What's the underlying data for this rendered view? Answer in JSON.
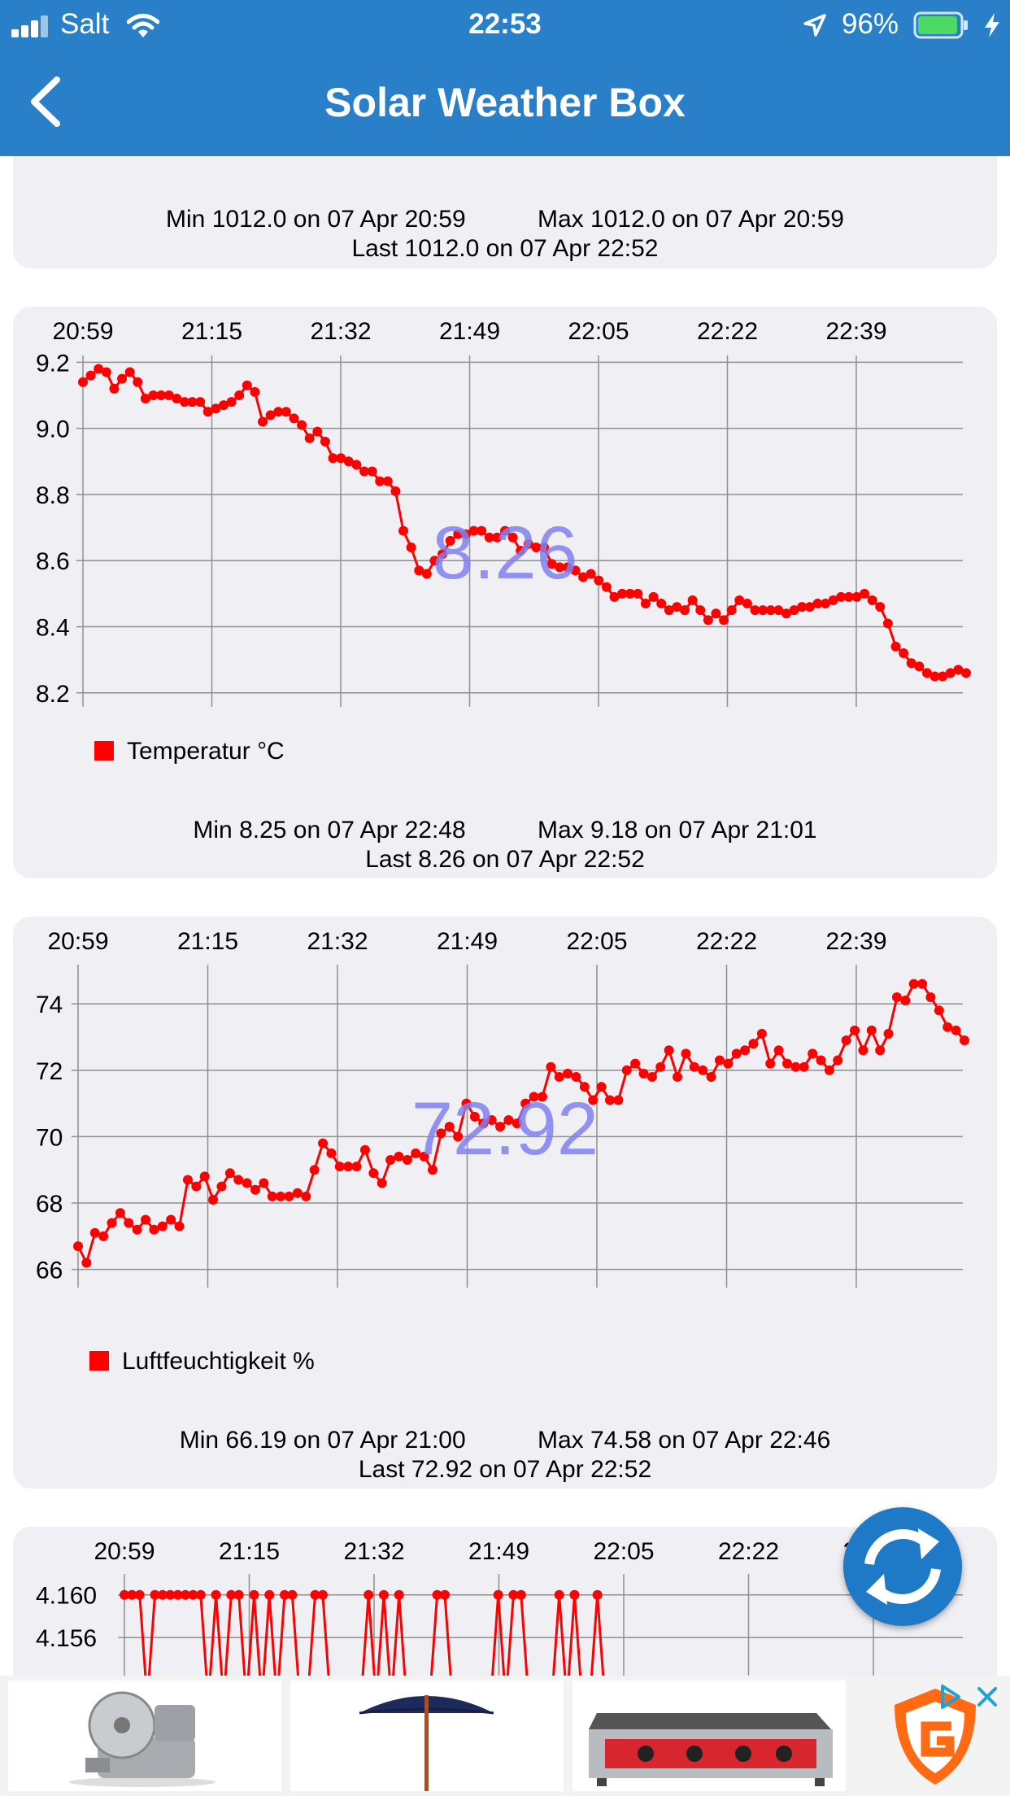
{
  "status_bar": {
    "carrier": "Salt",
    "time": "22:53",
    "battery_percent": "96%",
    "icons": [
      "signal-icon",
      "wifi-icon",
      "location-arrow-icon",
      "battery-icon",
      "charging-bolt-icon"
    ]
  },
  "nav": {
    "title": "Solar Weather Box",
    "back_icon": "chevron-left-icon"
  },
  "pressure_card": {
    "min": "Min 1012.0 on 07 Apr 20:59",
    "max": "Max 1012.0 on 07 Apr 20:59",
    "last": "Last 1012.0 on 07 Apr 22:52"
  },
  "temperature_card": {
    "time_ticks": [
      "20:59",
      "21:15",
      "21:32",
      "21:49",
      "22:05",
      "22:22",
      "22:39"
    ],
    "y_ticks": [
      "9.2",
      "9.0",
      "8.8",
      "8.6",
      "8.4",
      "8.2"
    ],
    "current_value": "8.26",
    "legend": "Temperatur °C",
    "min": "Min 8.25 on 07 Apr 22:48",
    "max": "Max 9.18 on 07 Apr 21:01",
    "last": "Last 8.26 on 07 Apr 22:52"
  },
  "humidity_card": {
    "time_ticks": [
      "20:59",
      "21:15",
      "21:32",
      "21:49",
      "22:05",
      "22:22",
      "22:39"
    ],
    "y_ticks": [
      "74",
      "72",
      "70",
      "68",
      "66"
    ],
    "current_value": "72.92",
    "legend": "Luftfeuchtigkeit %",
    "min": "Min 66.19 on 07 Apr 21:00",
    "max": "Max 74.58 on 07 Apr 22:46",
    "last": "Last 72.92 on 07 Apr 22:52"
  },
  "voltage_card": {
    "time_ticks": [
      "20:59",
      "21:15",
      "21:32",
      "21:49",
      "22:05",
      "22:22",
      "22:39"
    ],
    "y_ticks": [
      "4.160",
      "4.156"
    ]
  },
  "colors": {
    "bar": "#2a7fc9",
    "series": "#ff0000",
    "value_overlay": "#8080f0",
    "card": "#efeff4",
    "fab": "#1e79c7"
  },
  "fab_icon": "refresh-icon",
  "ads": {
    "tiles": [
      "meat-slicer-image",
      "parasol-image",
      "griddle-image"
    ],
    "logo": "g-shield-logo-icon",
    "adchoices_icon": "adchoices-icon",
    "close_icon": "close-icon"
  },
  "chart_data": [
    {
      "type": "line",
      "title": "",
      "x_axis_time_start": "20:59",
      "x_axis_time_end": "22:52",
      "series": [
        {
          "name": "Temperatur °C",
          "values": [
            9.14,
            9.16,
            9.18,
            9.17,
            9.12,
            9.15,
            9.17,
            9.14,
            9.09,
            9.1,
            9.1,
            9.1,
            9.09,
            9.08,
            9.08,
            9.08,
            9.05,
            9.06,
            9.07,
            9.08,
            9.1,
            9.13,
            9.11,
            9.02,
            9.04,
            9.05,
            9.05,
            9.03,
            9.01,
            8.97,
            8.99,
            8.96,
            8.91,
            8.91,
            8.9,
            8.89,
            8.87,
            8.87,
            8.84,
            8.84,
            8.81,
            8.69,
            8.64,
            8.57,
            8.56,
            8.6,
            8.62,
            8.66,
            8.68,
            8.68,
            8.69,
            8.69,
            8.67,
            8.67,
            8.69,
            8.67,
            8.63,
            8.65,
            8.64,
            8.64,
            8.59,
            8.58,
            8.58,
            8.57,
            8.55,
            8.56,
            8.54,
            8.52,
            8.49,
            8.5,
            8.5,
            8.5,
            8.47,
            8.49,
            8.47,
            8.45,
            8.46,
            8.45,
            8.48,
            8.45,
            8.42,
            8.44,
            8.42,
            8.45,
            8.48,
            8.47,
            8.45,
            8.45,
            8.45,
            8.45,
            8.44,
            8.45,
            8.46,
            8.46,
            8.47,
            8.47,
            8.48,
            8.49,
            8.49,
            8.49,
            8.5,
            8.48,
            8.46,
            8.41,
            8.34,
            8.32,
            8.29,
            8.28,
            8.26,
            8.25,
            8.25,
            8.26,
            8.27,
            8.26
          ]
        }
      ],
      "ylim": [
        8.17,
        9.25
      ],
      "y_ticks": [
        8.2,
        8.4,
        8.6,
        8.8,
        9.0,
        9.2
      ],
      "grid": true,
      "legend": "bottom-left"
    },
    {
      "type": "line",
      "title": "",
      "x_axis_time_start": "20:59",
      "x_axis_time_end": "22:52",
      "series": [
        {
          "name": "Luftfeuchtigkeit %",
          "values": [
            66.7,
            66.2,
            67.1,
            67.0,
            67.4,
            67.7,
            67.4,
            67.2,
            67.5,
            67.2,
            67.3,
            67.5,
            67.3,
            68.7,
            68.5,
            68.8,
            68.1,
            68.5,
            68.9,
            68.7,
            68.6,
            68.4,
            68.6,
            68.2,
            68.2,
            68.2,
            68.3,
            68.2,
            69.0,
            69.8,
            69.5,
            69.1,
            69.1,
            69.1,
            69.6,
            68.9,
            68.6,
            69.3,
            69.4,
            69.3,
            69.5,
            69.4,
            69.0,
            70.1,
            70.3,
            70.0,
            71.0,
            70.6,
            70.4,
            70.5,
            70.3,
            70.5,
            70.4,
            71.0,
            71.2,
            71.2,
            72.1,
            71.8,
            71.9,
            71.8,
            71.5,
            71.1,
            71.5,
            71.1,
            71.1,
            72.0,
            72.2,
            71.9,
            71.8,
            72.1,
            72.6,
            71.8,
            72.5,
            72.1,
            72.0,
            71.8,
            72.3,
            72.2,
            72.5,
            72.6,
            72.8,
            73.1,
            72.2,
            72.6,
            72.2,
            72.1,
            72.1,
            72.5,
            72.3,
            72.0,
            72.3,
            72.9,
            73.2,
            72.6,
            73.2,
            72.6,
            73.1,
            74.2,
            74.1,
            74.6,
            74.6,
            74.2,
            73.8,
            73.3,
            73.2,
            72.9
          ]
        }
      ],
      "ylim": [
        65.6,
        75.4
      ],
      "y_ticks": [
        66,
        68,
        70,
        72,
        74
      ],
      "grid": true,
      "legend": "bottom-left"
    },
    {
      "type": "line",
      "title": "",
      "x_axis_time_start": "20:59",
      "x_axis_time_end": "22:52",
      "series": [
        {
          "name": "",
          "values": [
            4.16,
            4.16,
            4.16,
            4.15,
            4.16,
            4.16,
            4.16,
            4.16,
            4.16,
            4.16,
            4.16,
            4.15,
            4.16,
            4.15,
            4.16,
            4.16,
            4.15,
            4.16,
            4.15,
            4.16,
            4.15,
            4.16,
            4.16,
            4.15,
            4.15,
            4.16,
            4.16,
            4.15,
            4.15,
            4.15,
            4.15,
            4.15,
            4.16,
            4.15,
            4.16,
            4.15,
            4.16,
            4.15,
            4.15,
            4.15,
            4.15,
            4.16,
            4.16,
            4.15,
            4.15,
            4.15,
            4.15,
            4.15,
            4.15,
            4.16,
            4.15,
            4.16,
            4.16,
            4.15,
            4.15,
            4.15,
            4.15,
            4.16,
            4.15,
            4.16,
            4.15,
            4.15,
            4.16,
            4.15
          ]
        }
      ],
      "ylim": [
        4.15,
        4.1615
      ],
      "y_ticks": [
        4.156,
        4.16
      ],
      "grid": true
    }
  ]
}
